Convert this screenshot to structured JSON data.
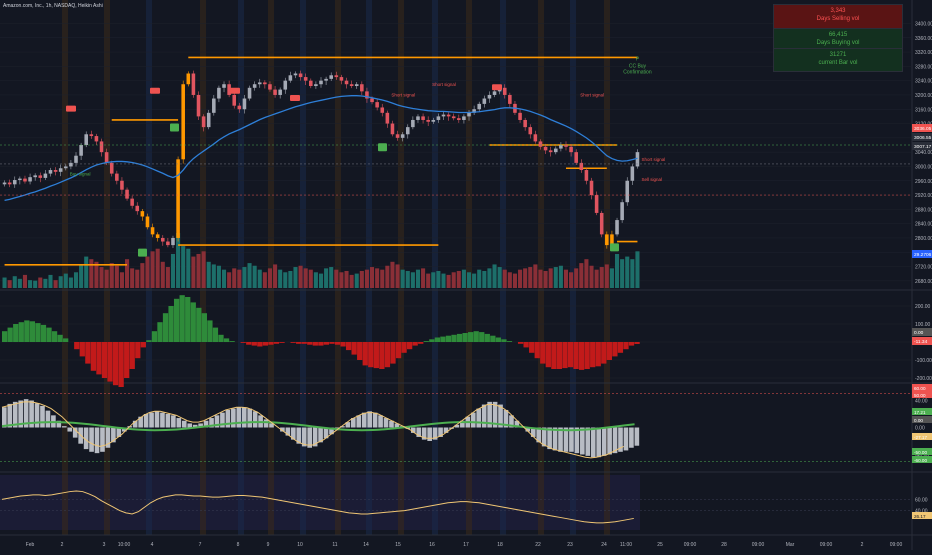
{
  "header": {
    "title": "Amazon.com, Inc., 1h, NASDAQ, Heikin Ashi"
  },
  "stats": [
    {
      "value": "3,343",
      "label": "Days Selling vol"
    },
    {
      "value": "66,415",
      "label": "Days Buying vol"
    },
    {
      "value": "31271",
      "label": "current Bar vol"
    }
  ],
  "colors": {
    "background": "#131722",
    "bull": "#26a69a",
    "bear": "#ef5350",
    "ema": "#2962ff",
    "orange": "#ff9800",
    "grid": "#1e222d",
    "osc": "#f0c674"
  },
  "annotations": [
    {
      "text": "P",
      "sub": "CC Buy",
      "sub2": "Confirmation",
      "x_index": 146,
      "price": 3305
    },
    {
      "text": "Short signal",
      "x_index": 75,
      "price": 3195
    },
    {
      "text": "Short signal",
      "x_index": 83,
      "price": 3225
    },
    {
      "text": "Short signal",
      "x_index": 112,
      "price": 3195
    },
    {
      "text": "Sell signal",
      "x_index": 131,
      "price": 2960
    },
    {
      "text": "Buy signal",
      "x_index": 12,
      "price": 2975
    },
    {
      "text": "Short signal",
      "x_index": 168,
      "price": 3015
    }
  ],
  "chart_data": [
    {
      "type": "candlestick",
      "title": "",
      "ylim": [
        2660,
        3460
      ],
      "y_ticks": [
        3400,
        3360,
        3320,
        3280,
        3240,
        3200,
        3160,
        3120,
        3080,
        3040,
        3000,
        2960,
        2920,
        2880,
        2840,
        2800,
        2760,
        2720,
        2680
      ],
      "x_tick_labels": [
        "Feb",
        "2",
        "3",
        "10:00",
        "4",
        "7",
        "8",
        "9",
        "10",
        "11",
        "14",
        "15",
        "16",
        "17",
        "18",
        "22",
        "23",
        "24",
        "11:00",
        "25",
        "09:00",
        "28",
        "09:00",
        "Mar",
        "09:00",
        "2",
        "09:00"
      ],
      "price_labels": [
        {
          "value": "3036.05",
          "color": "#ef5350"
        },
        {
          "value": "3006.55",
          "color": "#2a2e39"
        },
        {
          "value": "3007.17",
          "color": "#2a2e39"
        },
        {
          "value": "29.2706",
          "color": "#2962ff"
        }
      ],
      "series": [
        {
          "name": "close",
          "values": [
            2955,
            2950,
            2962,
            2966,
            2958,
            2970,
            2975,
            2968,
            2980,
            2990,
            2985,
            2995,
            3000,
            3010,
            3030,
            3060,
            3090,
            3085,
            3070,
            3040,
            3010,
            2980,
            2960,
            2935,
            2910,
            2890,
            2875,
            2860,
            2830,
            2810,
            2800,
            2790,
            2780,
            2800,
            3020,
            3230,
            3260,
            3200,
            3140,
            3110,
            3150,
            3190,
            3220,
            3230,
            3200,
            3170,
            3160,
            3190,
            3220,
            3230,
            3235,
            3230,
            3215,
            3200,
            3215,
            3240,
            3255,
            3260,
            3250,
            3240,
            3225,
            3230,
            3240,
            3245,
            3255,
            3250,
            3240,
            3230,
            3225,
            3230,
            3210,
            3190,
            3180,
            3165,
            3150,
            3120,
            3090,
            3080,
            3090,
            3110,
            3130,
            3140,
            3130,
            3125,
            3130,
            3140,
            3145,
            3140,
            3135,
            3130,
            3140,
            3150,
            3160,
            3175,
            3190,
            3200,
            3210,
            3220,
            3200,
            3175,
            3150,
            3130,
            3110,
            3090,
            3070,
            3055,
            3045,
            3040,
            3050,
            3060,
            3055,
            3040,
            3010,
            2990,
            2960,
            2920,
            2870,
            2810,
            2780,
            2810,
            2850,
            2900,
            2960,
            3000,
            3040
          ]
        }
      ],
      "ema": [
        2905,
        2908,
        2912,
        2916,
        2920,
        2925,
        2929,
        2934,
        2939,
        2945,
        2950,
        2956,
        2962,
        2968,
        2975,
        2983,
        2991,
        2998,
        3004,
        3008,
        3011,
        3013,
        3014,
        3014,
        3013,
        3011,
        3008,
        3004,
        2999,
        2993,
        2987,
        2981,
        2974,
        2969,
        2975,
        2990,
        3008,
        3022,
        3033,
        3043,
        3053,
        3063,
        3074,
        3083,
        3091,
        3097,
        3103,
        3110,
        3117,
        3124,
        3131,
        3137,
        3142,
        3147,
        3152,
        3157,
        3162,
        3167,
        3171,
        3175,
        3179,
        3182,
        3185,
        3188,
        3191,
        3194,
        3196,
        3197,
        3198,
        3198,
        3197,
        3195,
        3192,
        3189,
        3186,
        3182,
        3177,
        3172,
        3168,
        3165,
        3162,
        3160,
        3158,
        3156,
        3155,
        3154,
        3154,
        3153,
        3152,
        3151,
        3151,
        3151,
        3152,
        3153,
        3155,
        3157,
        3159,
        3162,
        3164,
        3164,
        3163,
        3161,
        3158,
        3154,
        3149,
        3144,
        3138,
        3131,
        3125,
        3119,
        3113,
        3106,
        3098,
        3089,
        3080,
        3069,
        3057,
        3043,
        3030,
        3022,
        3017,
        3015,
        3016,
        3019,
        3023
      ],
      "volume": [
        40,
        30,
        45,
        35,
        50,
        30,
        28,
        40,
        35,
        50,
        30,
        45,
        55,
        40,
        60,
        90,
        120,
        110,
        100,
        80,
        70,
        95,
        85,
        60,
        110,
        75,
        70,
        95,
        120,
        140,
        150,
        100,
        80,
        130,
        210,
        160,
        150,
        120,
        130,
        140,
        100,
        90,
        85,
        70,
        60,
        75,
        70,
        80,
        95,
        85,
        70,
        60,
        75,
        90,
        70,
        60,
        65,
        80,
        85,
        75,
        70,
        60,
        55,
        75,
        80,
        70,
        60,
        65,
        50,
        55,
        65,
        70,
        80,
        75,
        70,
        85,
        100,
        90,
        70,
        65,
        60,
        70,
        75,
        55,
        60,
        65,
        55,
        50,
        60,
        65,
        70,
        60,
        55,
        70,
        65,
        75,
        90,
        80,
        70,
        60,
        55,
        70,
        75,
        80,
        90,
        70,
        65,
        75,
        80,
        85,
        70,
        60,
        75,
        95,
        110,
        85,
        70,
        80,
        90,
        75,
        130,
        110,
        120,
        110,
        140
      ],
      "hlines": [
        {
          "price": 2725,
          "from": 0,
          "to": 24
        },
        {
          "price": 3130,
          "from": 21,
          "to": 34
        },
        {
          "price": 3305,
          "from": 36,
          "to": 160
        },
        {
          "price": 2780,
          "from": 34,
          "to": 85
        },
        {
          "price": 3060,
          "from": 95,
          "to": 120
        },
        {
          "price": 2995,
          "from": 110,
          "to": 118
        },
        {
          "price": 2790,
          "from": 120,
          "to": 125
        }
      ]
    },
    {
      "type": "bar",
      "title": "",
      "ylim": [
        -200,
        250
      ],
      "y_ticks": [
        200,
        100,
        0,
        -100,
        -200
      ],
      "value_labels": [
        {
          "value": "0.00",
          "color": "#555"
        },
        {
          "value": "-11.34",
          "color": "#ef5350"
        }
      ],
      "values": [
        60,
        80,
        100,
        110,
        120,
        115,
        105,
        95,
        80,
        60,
        40,
        20,
        0,
        -40,
        -80,
        -120,
        -160,
        -180,
        -200,
        -220,
        -240,
        -250,
        -200,
        -150,
        -90,
        -30,
        10,
        60,
        110,
        160,
        200,
        240,
        260,
        250,
        220,
        190,
        160,
        120,
        80,
        40,
        20,
        5,
        0,
        -5,
        -15,
        -20,
        -25,
        -20,
        -15,
        -10,
        -5,
        0,
        -5,
        -10,
        -10,
        -15,
        -20,
        -20,
        -15,
        -10,
        -15,
        -25,
        -45,
        -70,
        -100,
        -130,
        -140,
        -145,
        -150,
        -140,
        -120,
        -90,
        -60,
        -40,
        -20,
        -10,
        5,
        15,
        25,
        30,
        35,
        40,
        45,
        50,
        55,
        60,
        55,
        45,
        35,
        25,
        15,
        5,
        0,
        -10,
        -30,
        -60,
        -90,
        -120,
        -140,
        -150,
        -150,
        -145,
        -140,
        -150,
        -155,
        -150,
        -140,
        -135,
        -120,
        -100,
        -80,
        -60,
        -40,
        -20,
        -11
      ]
    },
    {
      "type": "bar",
      "title": "",
      "ylim": [
        -60,
        60
      ],
      "y_ticks": [
        40,
        0,
        -40
      ],
      "value_labels": [
        {
          "value": "60.00",
          "color": "#ef5350"
        },
        {
          "value": "50.00",
          "color": "#ef5350"
        },
        {
          "value": "17.21",
          "color": "#4caf50"
        },
        {
          "value": "0.00",
          "color": "#555"
        },
        {
          "value": "-27.17",
          "color": "#f0c674"
        },
        {
          "value": "-50.00",
          "color": "#4caf50"
        },
        {
          "value": "-60.00",
          "color": "#4caf50"
        }
      ],
      "values": [
        30,
        35,
        38,
        40,
        42,
        40,
        36,
        32,
        25,
        18,
        10,
        2,
        -6,
        -15,
        -24,
        -32,
        -36,
        -38,
        -36,
        -30,
        -22,
        -14,
        -6,
        2,
        10,
        16,
        20,
        22,
        24,
        22,
        20,
        18,
        14,
        10,
        6,
        4,
        6,
        10,
        14,
        18,
        22,
        26,
        28,
        30,
        30,
        28,
        24,
        18,
        12,
        6,
        0,
        -6,
        -12,
        -18,
        -24,
        -28,
        -30,
        -28,
        -22,
        -16,
        -10,
        -4,
        2,
        8,
        14,
        18,
        22,
        24,
        22,
        18,
        14,
        10,
        6,
        2,
        -2,
        -8,
        -14,
        -18,
        -20,
        -18,
        -14,
        -8,
        -2,
        4,
        10,
        16,
        22,
        28,
        34,
        38,
        38,
        34,
        26,
        18,
        10,
        2,
        -6,
        -14,
        -22,
        -28,
        -32,
        -34,
        -36,
        -36,
        -36,
        -38,
        -40,
        -42,
        -44,
        -44,
        -42,
        -40,
        -38,
        -36,
        -34,
        -30,
        -27
      ],
      "line": [
        30,
        32,
        34,
        36,
        38,
        38,
        37,
        35,
        32,
        28,
        22,
        16,
        8,
        0,
        -8,
        -16,
        -22,
        -26,
        -28,
        -26,
        -22,
        -16,
        -10,
        -2,
        6,
        12,
        18,
        22,
        24,
        24,
        22,
        20,
        18,
        14,
        10,
        8,
        8,
        10,
        14,
        18,
        22,
        26,
        28,
        30,
        30,
        29,
        26,
        22,
        16,
        10,
        4,
        -2,
        -8,
        -14,
        -20,
        -24,
        -26,
        -26,
        -22,
        -18,
        -12,
        -6,
        0,
        6,
        12,
        16,
        20,
        22,
        22,
        20,
        16,
        12,
        8,
        4,
        0,
        -4,
        -10,
        -14,
        -16,
        -16,
        -14,
        -10,
        -4,
        2,
        8,
        14,
        20,
        26,
        30,
        34,
        34,
        32,
        28,
        22,
        14,
        6,
        -2,
        -10,
        -18,
        -24,
        -28,
        -32,
        -34,
        -36,
        -38,
        -40,
        -42,
        -44,
        -45,
        -44,
        -42,
        -40,
        -36,
        -32,
        -28
      ]
    },
    {
      "type": "line",
      "title": "",
      "ylim": [
        0,
        100
      ],
      "y_ticks": [
        60,
        40
      ],
      "value_labels": [
        {
          "value": "26.17",
          "color": "#f0c674"
        }
      ],
      "values": [
        60,
        62,
        64,
        66,
        67,
        68,
        68,
        67,
        68,
        70,
        72,
        74,
        75,
        74,
        70,
        65,
        58,
        52,
        46,
        40,
        36,
        34,
        38,
        46,
        54,
        60,
        64,
        66,
        68,
        68,
        67,
        66,
        66,
        65,
        64,
        64,
        65,
        66,
        67,
        67,
        66,
        65,
        64,
        62,
        60,
        58,
        56,
        54,
        52,
        50,
        48,
        46,
        44,
        42,
        40,
        38,
        36,
        35,
        34,
        34,
        35,
        36,
        37,
        38,
        39,
        40,
        42,
        44,
        46,
        48,
        50,
        52,
        54,
        55,
        56,
        56,
        55,
        54,
        52,
        50,
        48,
        46,
        44,
        42,
        40,
        38,
        36,
        34,
        32,
        30,
        28,
        26,
        24,
        22,
        20,
        19,
        18,
        18,
        19,
        20,
        22,
        24,
        26
      ]
    }
  ]
}
